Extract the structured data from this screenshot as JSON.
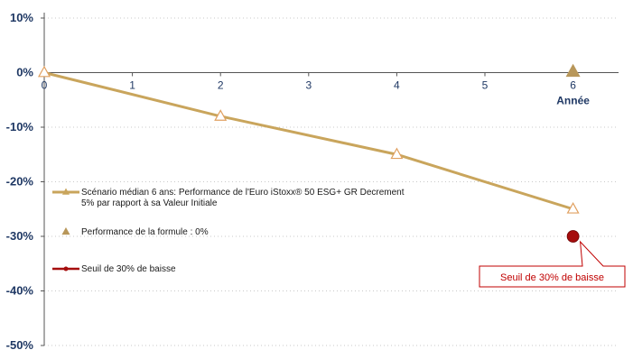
{
  "chart_data": {
    "type": "line",
    "xlabel": "Année",
    "x_ticks": [
      "0",
      "1",
      "2",
      "3",
      "4",
      "5",
      "6"
    ],
    "y_ticks": [
      "10%",
      "0%",
      "-10%",
      "-20%",
      "-30%",
      "-40%",
      "-50%"
    ],
    "xlim": [
      0,
      6.5
    ],
    "ylim": [
      -50,
      10
    ],
    "grid": "horizontal dotted",
    "series": [
      {
        "name": "Scénario médian 6 ans: Performance de l'Euro iStoxx® 50 ESG+ GR Decrement 5% par rapport à sa Valeur Initiale",
        "legend_lines": [
          "Scénario médian 6 ans: Performance de l'Euro iStoxx® 50 ESG+ GR Decrement",
          "5% par rapport à sa Valeur Initiale"
        ],
        "x": [
          0,
          2,
          4,
          6
        ],
        "y": [
          0,
          -8,
          -15,
          -25
        ],
        "color": "#c9a55c",
        "marker": "hollow-triangle"
      },
      {
        "name": "Performance de la formule : 0%",
        "x": [
          6
        ],
        "y": [
          0
        ],
        "color": "#b8975a",
        "marker": "filled-triangle"
      },
      {
        "name": "Seuil de 30% de baisse",
        "x": [
          6
        ],
        "y": [
          -30
        ],
        "color": "#a50d0d",
        "marker": "circle"
      }
    ],
    "annotations": [
      {
        "text": "Seuil de 30% de baisse",
        "x": 6,
        "y": -30
      }
    ]
  }
}
